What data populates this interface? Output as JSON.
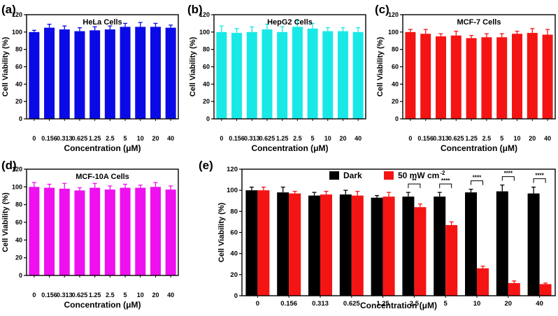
{
  "panels": [
    {
      "letter": "(a)",
      "title": "HeLa Cells"
    },
    {
      "letter": "(b)",
      "title": "HepG2 Cells"
    },
    {
      "letter": "(c)",
      "title": "MCF-7 Cells"
    },
    {
      "letter": "(d)",
      "title": "MCF-10A Cells"
    },
    {
      "letter": "(e)",
      "title": ""
    }
  ],
  "chart_data": [
    {
      "type": "bar",
      "title": "HeLa Cells",
      "xlabel": "Concentration (μM)",
      "ylabel": "Cell Viability (%)",
      "categories": [
        "0",
        "0.156",
        "0.313",
        "0.625",
        "1.25",
        "2.5",
        "5",
        "10",
        "20",
        "40"
      ],
      "values": [
        100,
        105,
        103,
        101,
        102,
        103,
        106,
        106,
        106,
        105
      ],
      "errors": [
        2,
        4,
        4,
        4,
        4,
        4,
        4,
        5,
        4,
        3
      ],
      "ylim": [
        0,
        120
      ],
      "yticks": [
        0,
        20,
        40,
        60,
        80,
        100,
        120
      ],
      "color": "#0a0ae6"
    },
    {
      "type": "bar",
      "title": "HepG2 Cells",
      "xlabel": "Concentration (μM)",
      "ylabel": "Cell Viability (%)",
      "categories": [
        "0",
        "0.156",
        "0.313",
        "0.625",
        "1.25",
        "2.5",
        "5",
        "10",
        "20",
        "40"
      ],
      "values": [
        100,
        99,
        100,
        103,
        100,
        106,
        104,
        101,
        101,
        100
      ],
      "errors": [
        7,
        5,
        6,
        6,
        6,
        7,
        6,
        4,
        4,
        5
      ],
      "ylim": [
        0,
        120
      ],
      "yticks": [
        0,
        20,
        40,
        60,
        80,
        100,
        120
      ],
      "color": "#19e9e6"
    },
    {
      "type": "bar",
      "title": "MCF-7 Cells",
      "xlabel": "Concentration (μM)",
      "ylabel": "Cell Viability (%)",
      "categories": [
        "0",
        "0.156",
        "0.313",
        "0.625",
        "1.25",
        "2.5",
        "5",
        "10",
        "20",
        "40"
      ],
      "values": [
        100,
        98,
        95,
        96,
        93,
        94,
        94,
        98,
        99,
        97
      ],
      "errors": [
        3,
        5,
        3,
        5,
        3,
        4,
        4,
        3,
        5,
        6
      ],
      "ylim": [
        0,
        120
      ],
      "yticks": [
        0,
        20,
        40,
        60,
        80,
        100,
        120
      ],
      "color": "#f51414"
    },
    {
      "type": "bar",
      "title": "MCF-10A Cells",
      "xlabel": "Concentration (μM)",
      "ylabel": "Cell Viability (%)",
      "categories": [
        "0",
        "0.156",
        "0.313",
        "0.625",
        "1.25",
        "2.5",
        "5",
        "10",
        "20",
        "40"
      ],
      "values": [
        100,
        99,
        98,
        96,
        99,
        97,
        99,
        99,
        100,
        97
      ],
      "errors": [
        5,
        4,
        6,
        3,
        5,
        4,
        4,
        3,
        5,
        4
      ],
      "ylim": [
        0,
        120
      ],
      "yticks": [
        0,
        20,
        40,
        60,
        80,
        100,
        120
      ],
      "color": "#ee10ee"
    },
    {
      "type": "bar",
      "title": "",
      "xlabel": "Concentration (μM)",
      "ylabel": "Cell Viability (%)",
      "categories": [
        "0",
        "0.156",
        "0.313",
        "0.625",
        "1.25",
        "2.5",
        "5",
        "10",
        "20",
        "40"
      ],
      "series": [
        {
          "name": "Dark",
          "color": "#000000",
          "values": [
            100,
            98,
            95,
            96,
            93,
            94,
            94,
            98,
            99,
            97
          ],
          "errors": [
            3,
            5,
            3,
            4,
            2,
            4,
            4,
            3,
            6,
            6
          ]
        },
        {
          "name": "50 mW cm",
          "name_sup": "-2",
          "color": "#f51414",
          "values": [
            100,
            97,
            96,
            95,
            94,
            84,
            67,
            26,
            12,
            11
          ],
          "errors": [
            3,
            2,
            3,
            4,
            4,
            3,
            3,
            2,
            2,
            1
          ]
        }
      ],
      "significance": [
        "",
        "",
        "",
        "",
        "",
        "**",
        "****",
        "****",
        "****",
        "****"
      ],
      "ylim": [
        0,
        120
      ],
      "yticks": [
        0,
        20,
        40,
        60,
        80,
        100,
        120
      ],
      "legend": "top-left"
    }
  ]
}
